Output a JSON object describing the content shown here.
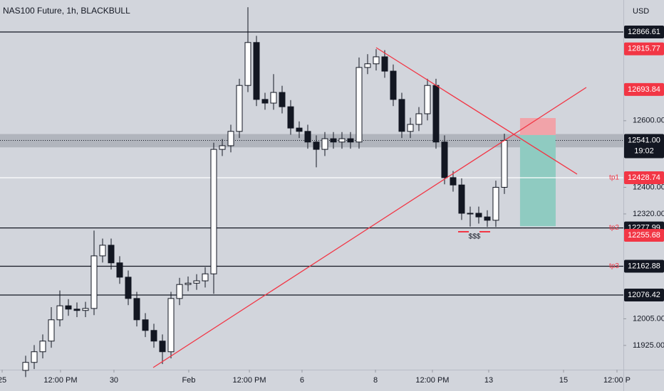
{
  "chart_data": {
    "type": "candlestick",
    "title": "NAS100 Future, 1h, BLACKBULL",
    "currency": "USD",
    "x": [
      3,
      4,
      5,
      6,
      7,
      8,
      9,
      10,
      11,
      12,
      13,
      14,
      15,
      16,
      17,
      18,
      19,
      20,
      21,
      22,
      23,
      24,
      25,
      26,
      27,
      28,
      29,
      30,
      31,
      32,
      33,
      34,
      35,
      36,
      37,
      38,
      39,
      40,
      41,
      42,
      43,
      44,
      45,
      46,
      47,
      48,
      49,
      50,
      51,
      52,
      53,
      54,
      55,
      56,
      57,
      58,
      59
    ],
    "open": [
      11850,
      11874,
      11906,
      11938,
      12002,
      12044,
      12034,
      12030,
      12036,
      12194,
      12226,
      12173,
      12130,
      12066,
      12002,
      11970,
      11938,
      11906,
      12066,
      12108,
      12112,
      12119,
      12140,
      12514,
      12525,
      12568,
      12706,
      12835,
      12664,
      12653,
      12685,
      12642,
      12578,
      12568,
      12536,
      12514,
      12546,
      12536,
      12546,
      12536,
      12760,
      12771,
      12792,
      12749,
      12664,
      12568,
      12589,
      12621,
      12706,
      12536,
      12429,
      12407,
      12322,
      12322,
      12311,
      12301,
      12400
    ],
    "high": [
      11894,
      11926,
      11958,
      12040,
      12090,
      12064,
      12054,
      12056,
      12270,
      12246,
      12246,
      12193,
      12150,
      12086,
      12022,
      11990,
      11958,
      12086,
      12128,
      12132,
      12139,
      12160,
      12534,
      12545,
      12588,
      12726,
      12941,
      12855,
      12684,
      12740,
      12705,
      12662,
      12598,
      12588,
      12556,
      12566,
      12566,
      12566,
      12566,
      12790,
      12800,
      12815,
      12812,
      12769,
      12684,
      12609,
      12641,
      12726,
      12726,
      12556,
      12449,
      12427,
      12342,
      12342,
      12331,
      12420,
      12561
    ],
    "low": [
      11830,
      11854,
      11886,
      11918,
      11982,
      12014,
      12010,
      12010,
      12016,
      12174,
      12153,
      12110,
      12046,
      11982,
      11950,
      11918,
      11869,
      11886,
      12046,
      12088,
      12092,
      12099,
      12080,
      12494,
      12505,
      12548,
      12686,
      12644,
      12633,
      12633,
      12622,
      12558,
      12548,
      12516,
      12460,
      12494,
      12516,
      12516,
      12516,
      12516,
      12740,
      12751,
      12729,
      12644,
      12548,
      12548,
      12569,
      12601,
      12516,
      12409,
      12387,
      12302,
      12282,
      12291,
      12281,
      12281,
      12380
    ],
    "close": [
      11874,
      11906,
      11938,
      12002,
      12044,
      12034,
      12030,
      12036,
      12194,
      12226,
      12173,
      12130,
      12066,
      12002,
      11970,
      11938,
      11906,
      12066,
      12108,
      12112,
      12119,
      12140,
      12514,
      12525,
      12568,
      12706,
      12835,
      12664,
      12653,
      12685,
      12642,
      12578,
      12568,
      12536,
      12514,
      12546,
      12536,
      12546,
      12536,
      12760,
      12771,
      12792,
      12749,
      12664,
      12568,
      12589,
      12621,
      12706,
      12536,
      12429,
      12407,
      12322,
      12322,
      12311,
      12301,
      12400,
      12541
    ],
    "up_color": "#ffffff",
    "down_color": "#131722",
    "wick_color": "#131722",
    "xlim": [
      0,
      72.92
    ],
    "ylim": [
      11852.1,
      12962.7
    ],
    "xticks": [
      {
        "value": 0.25,
        "label": "25"
      },
      {
        "value": 7.08,
        "label": "12:00 PM"
      },
      {
        "value": 13.33,
        "label": "30"
      },
      {
        "value": 22.08,
        "label": "Feb"
      },
      {
        "value": 29.17,
        "label": "12:00 PM"
      },
      {
        "value": 35.33,
        "label": "6"
      },
      {
        "value": 43.92,
        "label": "8"
      },
      {
        "value": 50.58,
        "label": "12:00 PM"
      },
      {
        "value": 57.17,
        "label": "13"
      },
      {
        "value": 65.92,
        "label": "15"
      },
      {
        "value": 72.17,
        "label": "12:00 P"
      }
    ],
    "yticks": [
      {
        "value": 12600,
        "label": "12600.00"
      },
      {
        "value": 12400,
        "label": "12400.00"
      },
      {
        "value": 12320,
        "label": "12320.00"
      },
      {
        "value": 12005,
        "label": "12005.00"
      },
      {
        "value": 11925,
        "label": "11925.00"
      }
    ],
    "levels": [
      {
        "value": 12866.61,
        "label": "12866.61",
        "line": "#131722",
        "tag_color": "#131722"
      },
      {
        "value": 12815.77,
        "label": "12815.77",
        "tag_color": "#f23645"
      },
      {
        "value": 12693.84,
        "label": "12693.84",
        "tag_color": "#f23645"
      },
      {
        "value": 12428.74,
        "label": "12428.74",
        "line": "#ffffff",
        "tag_color": "#f23645",
        "tag": "tp1"
      },
      {
        "value": 12277.99,
        "label": "12277.99",
        "line": "#131722",
        "tag_color": "#131722",
        "tag": "tp2"
      },
      {
        "value": 12255.68,
        "label": "12255.68",
        "tag_color": "#f23645"
      },
      {
        "value": 12162.88,
        "label": "12162.88",
        "line": "#131722",
        "tag_color": "#131722",
        "tag": "tp3"
      },
      {
        "value": 12076.42,
        "label": "12076.42",
        "line": "#131722",
        "tag_color": "#131722"
      }
    ],
    "last_price": {
      "value": 12541,
      "label": "12541.00",
      "countdown": "19:02",
      "band": [
        12520,
        12560
      ]
    },
    "trendlines": [
      {
        "x": [
          17.92,
          68.58
        ],
        "y": [
          11858.5,
          12700.0
        ],
        "color": "#f23645"
      },
      {
        "x": [
          44.0,
          67.5
        ],
        "y": [
          12819.6,
          12439.5
        ],
        "color": "#f23645"
      }
    ],
    "position": {
      "x": [
        60.83,
        65.0
      ],
      "stop": 12608,
      "entry": 12557,
      "target": 12283,
      "stop_color": "#f1a3a9",
      "target_color": "#8fcbc1"
    },
    "annotation": "$$$"
  }
}
